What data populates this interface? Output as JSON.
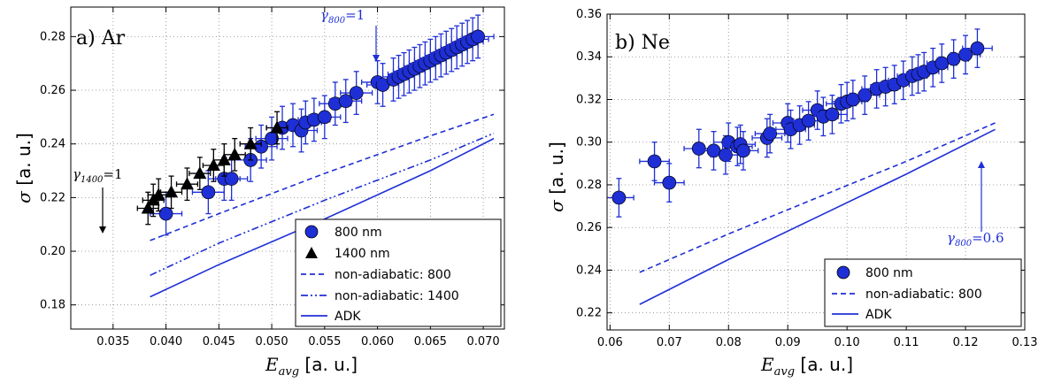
{
  "chart_data": [
    {
      "type": "scatter",
      "panel_label": "a) Ar",
      "xlabel": "E_avg [a. u.]",
      "ylabel": "σ [a. u.]",
      "xlim": [
        0.031,
        0.072
      ],
      "ylim": [
        0.171,
        0.291
      ],
      "xticks": [
        "0.035",
        "0.040",
        "0.045",
        "0.050",
        "0.055",
        "0.060",
        "0.065",
        "0.070"
      ],
      "xtick_values": [
        0.035,
        0.04,
        0.045,
        0.05,
        0.055,
        0.06,
        0.065,
        0.07
      ],
      "yticks": [
        "0.18",
        "0.20",
        "0.22",
        "0.24",
        "0.26",
        "0.28"
      ],
      "ytick_values": [
        0.18,
        0.2,
        0.22,
        0.24,
        0.26,
        0.28
      ],
      "grid": true,
      "legend_position": "bottom-right",
      "series": [
        {
          "name": "800 nm",
          "kind": "points",
          "marker": "circle",
          "color": "#1f2fd6",
          "x": [
            0.04,
            0.044,
            0.0455,
            0.0462,
            0.048,
            0.049,
            0.05,
            0.051,
            0.052,
            0.0528,
            0.0532,
            0.054,
            0.055,
            0.056,
            0.057,
            0.058,
            0.06,
            0.0605,
            0.0615,
            0.062,
            0.0625,
            0.063,
            0.0635,
            0.064,
            0.0645,
            0.065,
            0.0655,
            0.066,
            0.0665,
            0.067,
            0.0675,
            0.068,
            0.0685,
            0.069,
            0.0695
          ],
          "y": [
            0.214,
            0.222,
            0.227,
            0.227,
            0.234,
            0.239,
            0.242,
            0.246,
            0.247,
            0.245,
            0.248,
            0.249,
            0.25,
            0.255,
            0.256,
            0.259,
            0.263,
            0.262,
            0.264,
            0.265,
            0.266,
            0.267,
            0.268,
            0.269,
            0.27,
            0.271,
            0.272,
            0.273,
            0.274,
            0.275,
            0.276,
            0.277,
            0.278,
            0.279,
            0.28
          ],
          "xerr": 0.0015,
          "yerr": 0.008
        },
        {
          "name": "1400 nm",
          "kind": "points",
          "marker": "triangle",
          "color": "#000000",
          "x": [
            0.0383,
            0.0388,
            0.0393,
            0.0405,
            0.042,
            0.0432,
            0.0445,
            0.0455,
            0.0465,
            0.048,
            0.0505
          ],
          "y": [
            0.216,
            0.219,
            0.221,
            0.222,
            0.225,
            0.229,
            0.232,
            0.234,
            0.236,
            0.24,
            0.246
          ],
          "xerr": 0.001,
          "yerr": 0.006
        },
        {
          "name": "non-adiabatic: 800",
          "kind": "line",
          "dash": "6,4",
          "color": "#1f2fd6",
          "x": [
            0.0385,
            0.045,
            0.055,
            0.065,
            0.071
          ],
          "y": [
            0.204,
            0.214,
            0.229,
            0.243,
            0.251
          ]
        },
        {
          "name": "non-adiabatic: 1400",
          "kind": "line",
          "dash": "8,3,2,3,2,3",
          "color": "#1f2fd6",
          "x": [
            0.0385,
            0.045,
            0.055,
            0.065,
            0.071
          ],
          "y": [
            0.191,
            0.203,
            0.219,
            0.234,
            0.244
          ]
        },
        {
          "name": "ADK",
          "kind": "line",
          "dash": "",
          "color": "#1f2fd6",
          "x": [
            0.0385,
            0.045,
            0.055,
            0.065,
            0.071
          ],
          "y": [
            0.183,
            0.195,
            0.212,
            0.23,
            0.242
          ]
        }
      ],
      "annotations": [
        {
          "text_main": "γ",
          "text_sub": "800",
          "text_tail": "=1",
          "color": "#1f2fd6"
        },
        {
          "text_main": "γ",
          "text_sub": "1400",
          "text_tail": "=1",
          "color": "#000000"
        }
      ]
    },
    {
      "type": "scatter",
      "panel_label": "b) Ne",
      "xlabel": "E_avg [a. u.]",
      "ylabel": "σ [a. u.]",
      "xlim": [
        0.0595,
        0.13
      ],
      "ylim": [
        0.212,
        0.36
      ],
      "xticks": [
        "0.06",
        "0.07",
        "0.08",
        "0.09",
        "0.10",
        "0.11",
        "0.12",
        "0.13"
      ],
      "xtick_values": [
        0.06,
        0.07,
        0.08,
        0.09,
        0.1,
        0.11,
        0.12,
        0.13
      ],
      "yticks": [
        "0.22",
        "0.24",
        "0.26",
        "0.28",
        "0.30",
        "0.32",
        "0.34",
        "0.36"
      ],
      "ytick_values": [
        0.22,
        0.24,
        0.26,
        0.28,
        0.3,
        0.32,
        0.34,
        0.36
      ],
      "grid": true,
      "legend_position": "bottom-right",
      "series": [
        {
          "name": "800 nm",
          "kind": "points",
          "marker": "circle",
          "color": "#1f2fd6",
          "x": [
            0.0615,
            0.0675,
            0.07,
            0.075,
            0.0775,
            0.0795,
            0.08,
            0.0815,
            0.082,
            0.0825,
            0.0865,
            0.087,
            0.09,
            0.0905,
            0.092,
            0.0935,
            0.095,
            0.096,
            0.0975,
            0.099,
            0.1,
            0.101,
            0.103,
            0.105,
            0.1065,
            0.108,
            0.1095,
            0.111,
            0.112,
            0.113,
            0.1145,
            0.116,
            0.118,
            0.12,
            0.122
          ],
          "y": [
            0.274,
            0.291,
            0.281,
            0.297,
            0.296,
            0.294,
            0.3,
            0.298,
            0.299,
            0.296,
            0.302,
            0.304,
            0.309,
            0.306,
            0.308,
            0.31,
            0.315,
            0.312,
            0.313,
            0.318,
            0.319,
            0.32,
            0.322,
            0.325,
            0.326,
            0.327,
            0.329,
            0.331,
            0.332,
            0.333,
            0.335,
            0.337,
            0.339,
            0.341,
            0.344
          ],
          "xerr": 0.0025,
          "yerr": 0.009
        },
        {
          "name": "non-adiabatic: 800",
          "kind": "line",
          "dash": "6,4",
          "color": "#1f2fd6",
          "x": [
            0.065,
            0.08,
            0.095,
            0.11,
            0.125
          ],
          "y": [
            0.239,
            0.257,
            0.274,
            0.291,
            0.309
          ]
        },
        {
          "name": "ADK",
          "kind": "line",
          "dash": "",
          "color": "#1f2fd6",
          "x": [
            0.065,
            0.08,
            0.095,
            0.11,
            0.125
          ],
          "y": [
            0.224,
            0.245,
            0.265,
            0.285,
            0.306
          ]
        }
      ],
      "annotations": [
        {
          "text_main": "γ",
          "text_sub": "800",
          "text_tail": "=0.6",
          "color": "#1f2fd6"
        }
      ]
    }
  ]
}
